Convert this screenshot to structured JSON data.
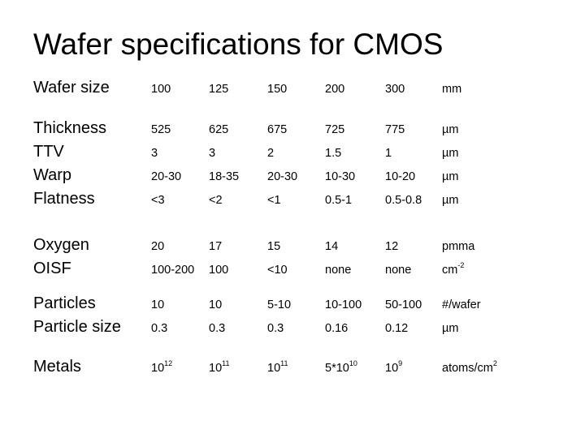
{
  "title": "Wafer specifications for CMOS",
  "groups": [
    {
      "labels": [
        "Wafer size"
      ],
      "rows": [
        {
          "cells": [
            "100",
            "125",
            "150",
            "200",
            "300"
          ],
          "unit": "mm"
        }
      ]
    },
    {
      "labels": [
        "Thickness",
        "TTV",
        "Warp",
        "Flatness"
      ],
      "rows": [
        {
          "cells": [
            "525",
            "625",
            "675",
            "725",
            "775"
          ],
          "unit": "µm"
        },
        {
          "cells": [
            "3",
            "3",
            "2",
            "1.5",
            "1"
          ],
          "unit": "µm"
        },
        {
          "cells": [
            "20-30",
            "18-35",
            "20-30",
            "10-30",
            "10-20"
          ],
          "unit": "µm"
        },
        {
          "cells": [
            "<3",
            "<2",
            "<1",
            "0.5-1",
            "0.5-0.8"
          ],
          "unit": "µm"
        }
      ]
    },
    {
      "labels": [
        "Oxygen",
        "OISF"
      ],
      "rows": [
        {
          "cells": [
            "20",
            "17",
            "15",
            "14",
            "12"
          ],
          "unit": "pmma"
        },
        {
          "cells": [
            "100-200",
            "100",
            "<10",
            "none",
            "none"
          ],
          "unit": "cm",
          "unit_sup": "-2"
        }
      ]
    },
    {
      "labels": [
        "Particles",
        "Particle size"
      ],
      "rows": [
        {
          "cells": [
            "10",
            "10",
            "5-10",
            "10-100",
            "50-100"
          ],
          "unit": "#/wafer"
        },
        {
          "cells": [
            "0.3",
            "0.3",
            "0.3",
            "0.16",
            "0.12"
          ],
          "unit": "µm"
        }
      ]
    },
    {
      "labels": [
        "Metals"
      ],
      "rows": [
        {
          "cells": [
            {
              "base": "10",
              "sup": "12"
            },
            {
              "base": "10",
              "sup": "11"
            },
            {
              "base": "10",
              "sup": "11"
            },
            {
              "base": "5*10",
              "sup": "10"
            },
            {
              "base": "10",
              "sup": "9"
            }
          ],
          "unit": "atoms/cm",
          "unit_sup": "2"
        }
      ]
    }
  ]
}
